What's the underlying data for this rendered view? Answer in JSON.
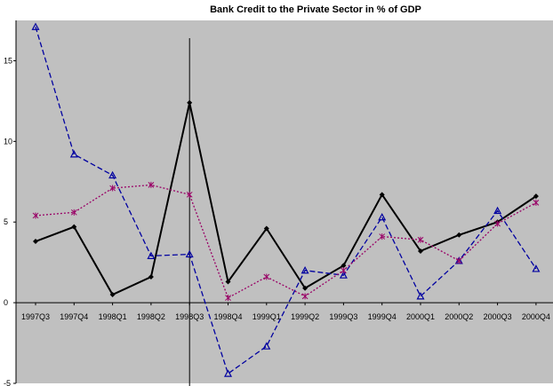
{
  "chart_data": {
    "type": "line",
    "title": "Bank Credit to the Private Sector  in % of GDP",
    "xlabel": "",
    "ylabel": "",
    "categories": [
      "1997Q3",
      "1997Q4",
      "1998Q1",
      "1998Q2",
      "1998Q3",
      "1998Q4",
      "1999Q1",
      "1999Q2",
      "1999Q3",
      "1999Q4",
      "2000Q1",
      "2000Q2",
      "2000Q3",
      "2000Q4"
    ],
    "ylim": [
      -5,
      17.5
    ],
    "yticks": [
      -5,
      0,
      5,
      10,
      15
    ],
    "grid": false,
    "legend": "none",
    "plot_background": "#c0c0c0",
    "event_line_category": "1998Q3",
    "series": [
      {
        "color": "#000000",
        "style": "solid",
        "marker": "diamond",
        "values": [
          3.8,
          4.7,
          0.5,
          1.6,
          12.4,
          1.3,
          4.6,
          0.9,
          2.3,
          6.7,
          3.2,
          4.2,
          5.0,
          6.6
        ]
      },
      {
        "color": "#0000a0",
        "style": "dashed",
        "marker": "triangle",
        "values": [
          17.1,
          9.2,
          7.9,
          2.9,
          3.0,
          -4.4,
          -2.7,
          2.0,
          1.7,
          5.3,
          0.4,
          2.6,
          5.7,
          2.1
        ]
      },
      {
        "color": "#990066",
        "style": "dotted",
        "marker": "asterisk",
        "values": [
          5.4,
          5.6,
          7.1,
          7.3,
          6.7,
          0.3,
          1.6,
          0.4,
          2.0,
          4.1,
          3.9,
          2.6,
          4.9,
          6.2
        ]
      }
    ]
  }
}
